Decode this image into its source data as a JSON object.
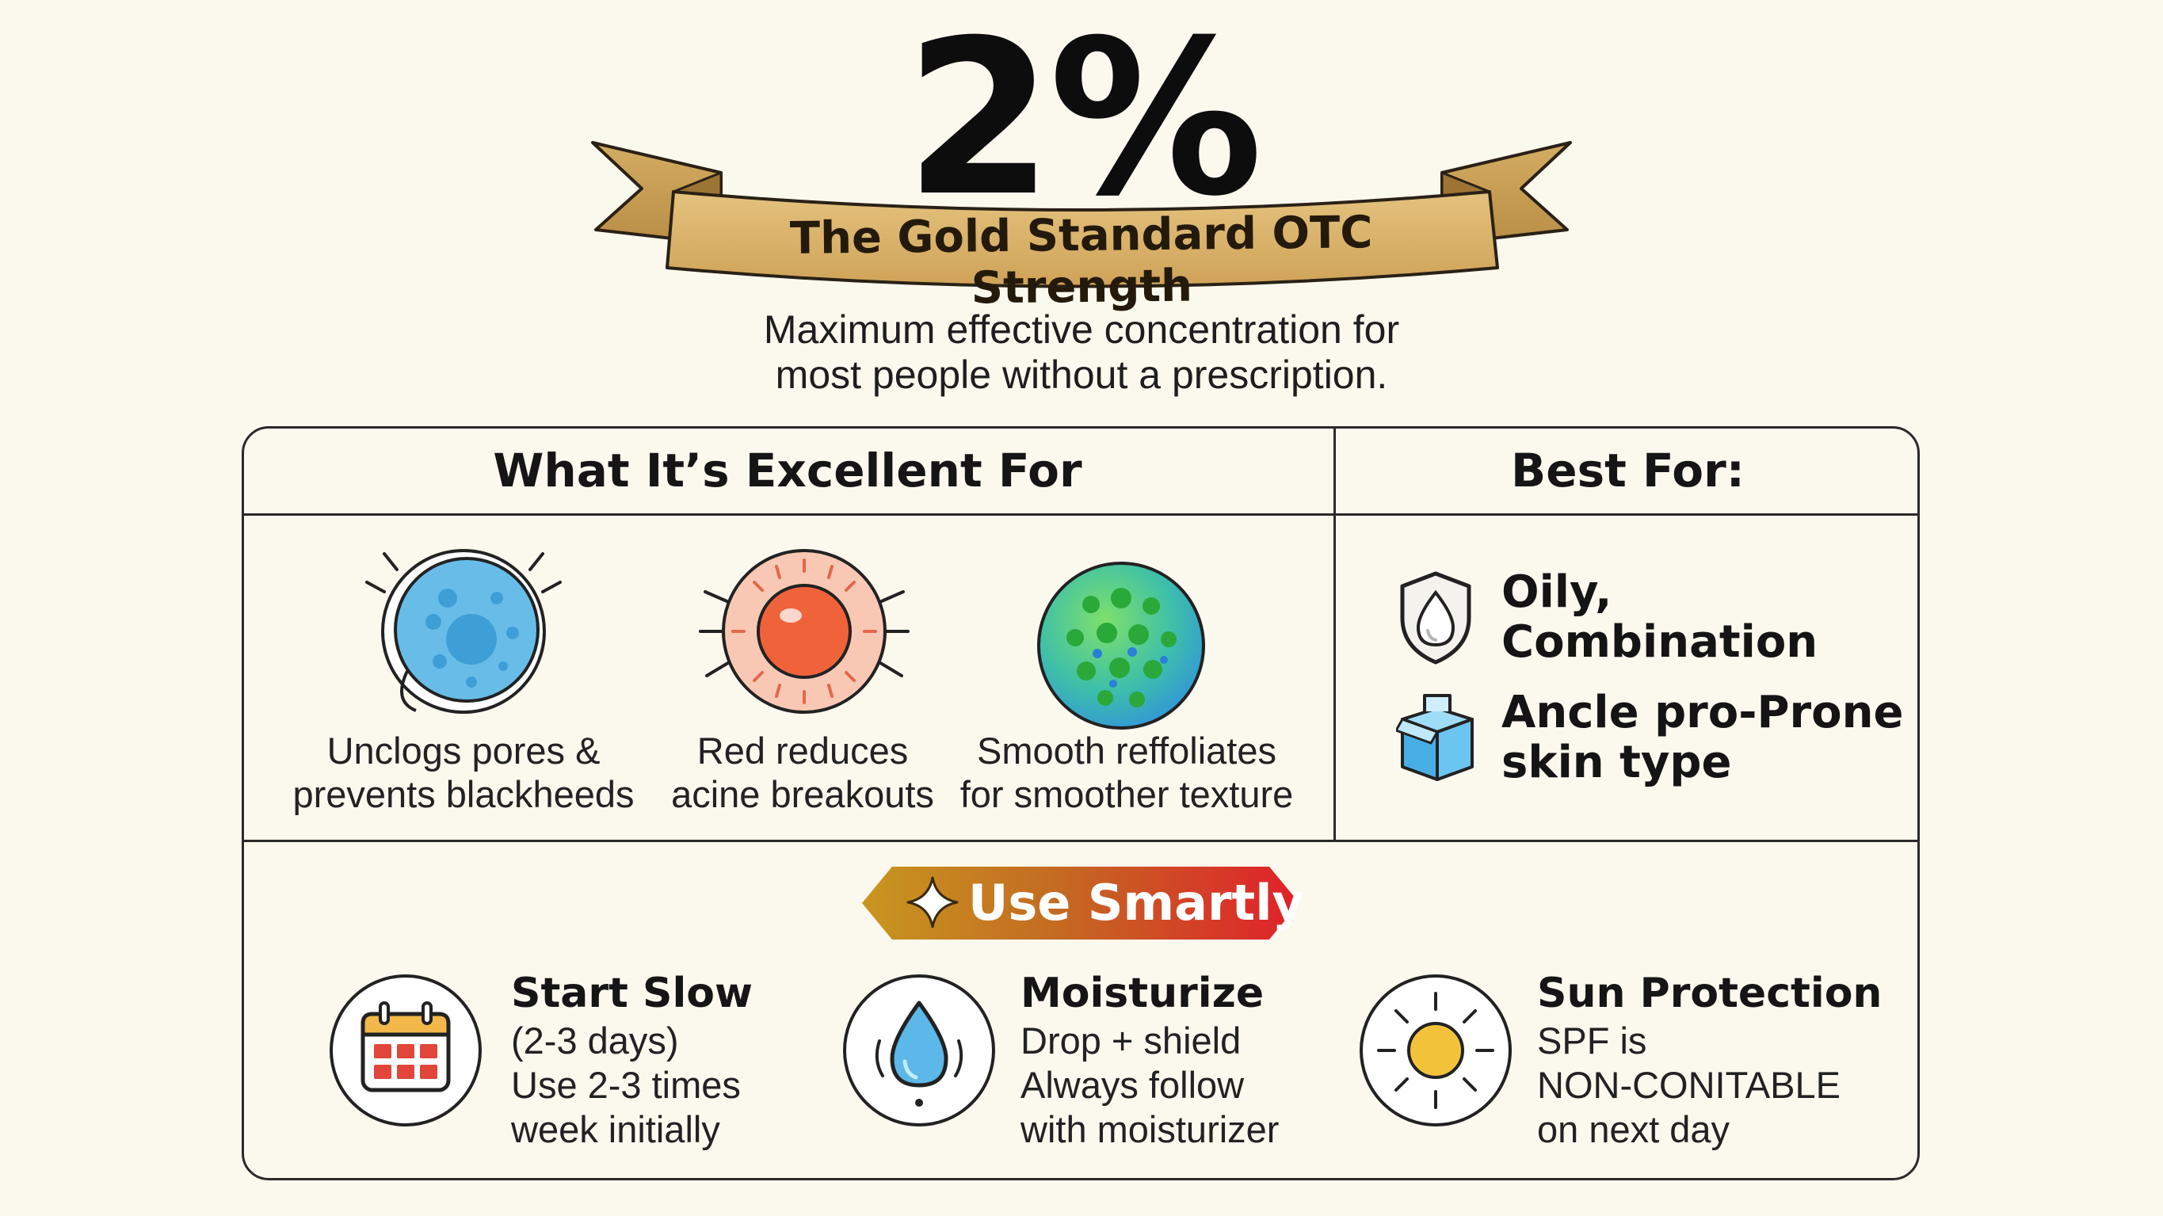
{
  "headline": {
    "percent": "2%",
    "ribbon_text": "The Gold Standard OTC Strength",
    "subtitle_line1": "Maximum effective concentration for",
    "subtitle_line2": "most people without a prescription."
  },
  "excellent_for": {
    "title": "What It’s Excellent For",
    "items": [
      {
        "icon": "pore-cell-icon",
        "line1": "Unclogs pores &",
        "line2": "prevents blackheeds"
      },
      {
        "icon": "inflamed-spot-icon",
        "line1": "Red reduces",
        "line2": "acine breakouts"
      },
      {
        "icon": "texture-sphere-icon",
        "line1": "Smooth reffoliates",
        "line2": "for smoother texture"
      }
    ]
  },
  "best_for": {
    "title": "Best For:",
    "items": [
      {
        "icon": "shield-drop-icon",
        "line1": "Oily,",
        "line2": "Combination"
      },
      {
        "icon": "box-icon",
        "line1": "Ancle pro-Prone",
        "line2": "skin type"
      }
    ]
  },
  "use_smartly": {
    "label": "Use Smartly",
    "icon": "sparkle-icon",
    "colors": {
      "start": "#c8961f",
      "end": "#e0202a"
    },
    "tips": [
      {
        "icon": "calendar-icon",
        "title": "Start Slow",
        "lines": [
          "(2-3 days)",
          "Use 2-3 times",
          "week initially"
        ]
      },
      {
        "icon": "water-drop-icon",
        "title": "Moisturize",
        "lines": [
          "Drop + shield",
          "Always follow",
          "with moisturizer"
        ]
      },
      {
        "icon": "sun-icon",
        "title": "Sun Protection",
        "lines": [
          "SPF is",
          "NON-CONITABLE",
          "on next day"
        ]
      }
    ]
  },
  "colors": {
    "background": "#fbf8ee",
    "ribbon_gold": "#d9b36a",
    "pore_blue": "#67bde8",
    "spot_red": "#f0623a",
    "sun_yellow": "#f2c33a"
  }
}
